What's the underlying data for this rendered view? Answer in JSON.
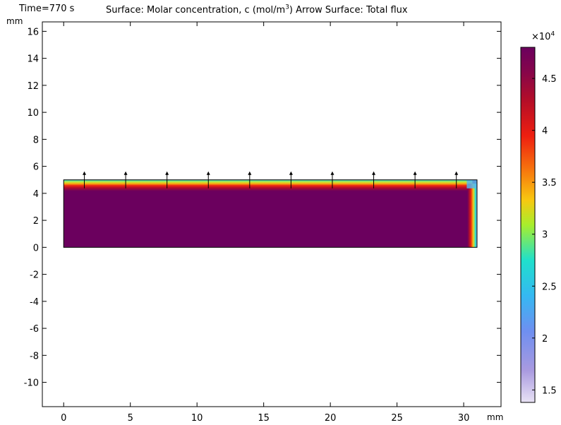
{
  "header": {
    "time_label": "Time=770 s",
    "title_prefix": "Surface: Molar concentration, c (mol/m",
    "title_sup": "3",
    "title_suffix": ")  Arrow Surface: Total flux"
  },
  "axes": {
    "x_unit": "mm",
    "y_unit": "mm"
  },
  "colorbar": {
    "multiplier_base": "×10",
    "multiplier_exp": "4",
    "colormap": "Prism (purple-white to red to dark purple)",
    "range": [
      1.38,
      4.8
    ],
    "tick_labels": [
      "1.5",
      "2",
      "2.5",
      "3",
      "3.5",
      "4",
      "4.5"
    ]
  },
  "chart_data": {
    "type": "heatmap",
    "title": "Surface: Molar concentration, c (mol/m3)  Arrow Surface: Total flux",
    "time": "Time=770 s",
    "xlabel": "mm",
    "ylabel": "mm",
    "xlim": [
      -1.6,
      32.8
    ],
    "ylim": [
      -11.8,
      16.7
    ],
    "xticks": [
      0,
      5,
      10,
      15,
      20,
      25,
      30
    ],
    "yticks": [
      -10,
      -8,
      -6,
      -4,
      -2,
      0,
      2,
      4,
      6,
      8,
      10,
      12,
      14,
      16
    ],
    "domain": {
      "x": [
        0,
        31
      ],
      "y": [
        0,
        5
      ]
    },
    "colorbar_multiplier": 10000,
    "colorbar_range": [
      1.38,
      4.8
    ],
    "colorbar_ticks": [
      1.5,
      2,
      2.5,
      3,
      3.5,
      4,
      4.5
    ],
    "surface": {
      "bulk_value": 4.8,
      "top_boundary_value": 2.6,
      "right_boundary_value": 2.4,
      "boundary_layer_mm": 0.7
    },
    "arrows": {
      "y": 5,
      "direction": "up",
      "x": [
        1.55,
        4.65,
        7.75,
        10.85,
        13.95,
        17.05,
        20.15,
        23.25,
        26.35,
        29.45
      ]
    },
    "grid": false
  }
}
